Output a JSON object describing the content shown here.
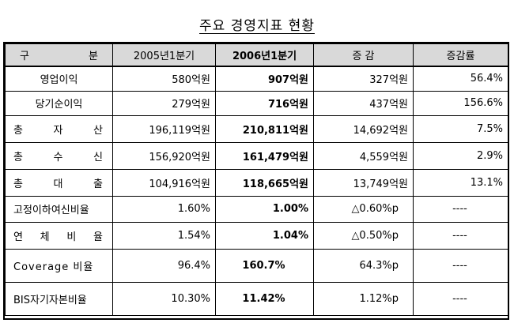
{
  "title": "주요 경영지표 현황",
  "header": {
    "col_category": [
      "구",
      "분"
    ],
    "col_2005": "2005년1분기",
    "col_2006": "2006년1분기",
    "col_change": "증 감",
    "col_rate": "증감률"
  },
  "rows": [
    {
      "label": "영업이익",
      "v2005": "580억원",
      "v2006": "907억원",
      "change": "327억원",
      "rate": "56.4%"
    },
    {
      "label": "당기순이익",
      "v2005": "279억원",
      "v2006": "716억원",
      "change": "437억원",
      "rate": "156.6%"
    },
    {
      "label_parts": [
        "총",
        "자",
        "산"
      ],
      "v2005": "196,119억원",
      "v2006": "210,811억원",
      "change": "14,692억원",
      "rate": "7.5%"
    },
    {
      "label_parts": [
        "총",
        "수",
        "신"
      ],
      "v2005": "156,920억원",
      "v2006": "161,479억원",
      "change": "4,559억원",
      "rate": "2.9%"
    },
    {
      "label_parts": [
        "총",
        "대",
        "출"
      ],
      "v2005": "104,916억원",
      "v2006": "118,665억원",
      "change": "13,749억원",
      "rate": "13.1%"
    },
    {
      "label": "고정이하여신비율",
      "v2005": "1.60%",
      "v2006": "1.00%",
      "change": "△0.60%p",
      "rate": "----"
    },
    {
      "label_parts": [
        "연",
        "체",
        "비",
        "율"
      ],
      "v2005": "1.54%",
      "v2006": "1.04%",
      "change": "△0.50%p",
      "rate": "----"
    },
    {
      "label": "Coverage 비율",
      "v2005": "96.4%",
      "v2006": "160.7%",
      "change": "64.3%p",
      "rate": "----"
    },
    {
      "label": "BIS자기자본비율",
      "v2005": "10.30%",
      "v2006": "11.42%",
      "change": "1.12%p",
      "rate": "----"
    }
  ]
}
